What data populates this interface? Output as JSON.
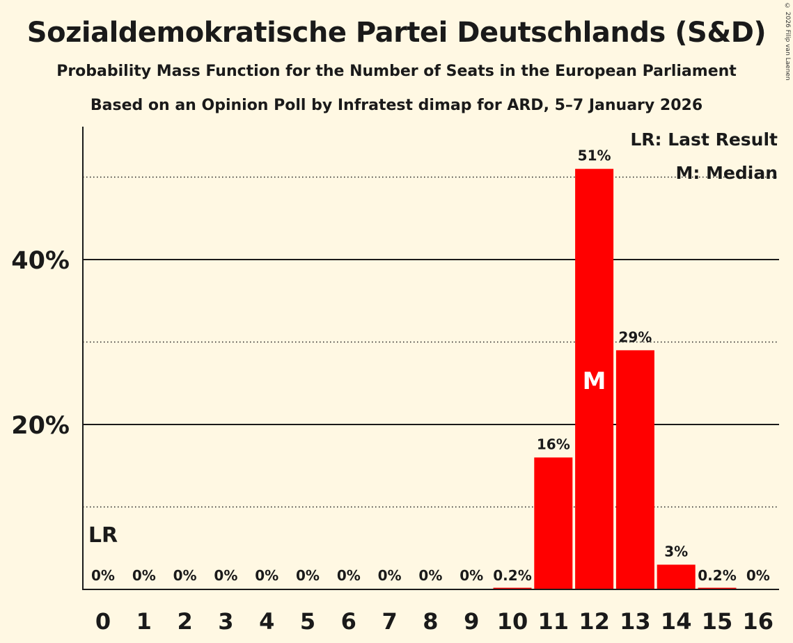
{
  "chart_data": {
    "type": "bar",
    "title": "Sozialdemokratische Partei Deutschlands (S&D)",
    "subtitle": "Probability Mass Function for the Number of Seats in the European Parliament",
    "subtitle2": "Based on an Opinion Poll by Infratest dimap for ARD, 5–7 January 2026",
    "categories": [
      "0",
      "1",
      "2",
      "3",
      "4",
      "5",
      "6",
      "7",
      "8",
      "9",
      "10",
      "11",
      "12",
      "13",
      "14",
      "15",
      "16"
    ],
    "values": [
      0,
      0,
      0,
      0,
      0,
      0,
      0,
      0,
      0,
      0,
      0.2,
      16,
      51,
      29,
      3,
      0.2,
      0
    ],
    "value_labels": [
      "0%",
      "0%",
      "0%",
      "0%",
      "0%",
      "0%",
      "0%",
      "0%",
      "0%",
      "0%",
      "0.2%",
      "16%",
      "51%",
      "29%",
      "3%",
      "0.2%",
      "0%"
    ],
    "ylim": [
      0,
      56
    ],
    "yticks": [
      20,
      40
    ],
    "ytick_labels": [
      "20%",
      "40%"
    ],
    "dotted_gridlines": [
      10,
      30,
      50
    ],
    "last_result_seat": "0",
    "median_seat": "12",
    "last_result_marker": "LR",
    "median_marker": "M",
    "legend": [
      "LR: Last Result",
      "M: Median"
    ],
    "legend_position": "top-right",
    "bar_color": "#FF0000",
    "copyright": "© 2026 Filip van Laenen"
  }
}
